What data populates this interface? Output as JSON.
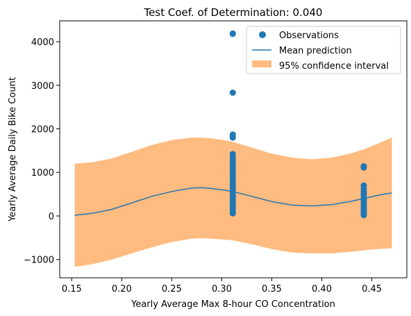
{
  "chart_data": {
    "type": "scatter",
    "title": "Test Coef. of Determination: 0.040",
    "xlabel": "Yearly Average Max 8-hour CO Concentration",
    "ylabel": "Yearly Average Daily Bike Count",
    "xlim": [
      0.138,
      0.485
    ],
    "ylim": [
      -1420,
      4480
    ],
    "xticks": [
      0.15,
      0.2,
      0.25,
      0.3,
      0.35,
      0.4,
      0.45
    ],
    "xtick_labels": [
      "0.15",
      "0.20",
      "0.25",
      "0.30",
      "0.35",
      "0.40",
      "0.45"
    ],
    "yticks": [
      -1000,
      0,
      1000,
      2000,
      3000,
      4000
    ],
    "ytick_labels": [
      "−1000",
      "0",
      "1000",
      "2000",
      "3000",
      "4000"
    ],
    "grid": false,
    "legend_position": "top-right",
    "colors": {
      "observations": "#1f77b4",
      "mean": "#1f77b4",
      "ci": "#ffbb80",
      "axis": "#000000"
    },
    "series": [
      {
        "name": "Observations",
        "kind": "scatter",
        "points": [
          [
            0.311,
            4190
          ],
          [
            0.311,
            4180
          ],
          [
            0.311,
            2830
          ],
          [
            0.311,
            1870
          ],
          [
            0.311,
            1800
          ],
          [
            0.311,
            1420
          ],
          [
            0.311,
            1350
          ],
          [
            0.311,
            1280
          ],
          [
            0.311,
            1200
          ],
          [
            0.311,
            1130
          ],
          [
            0.311,
            1060
          ],
          [
            0.311,
            990
          ],
          [
            0.311,
            930
          ],
          [
            0.311,
            870
          ],
          [
            0.311,
            810
          ],
          [
            0.311,
            750
          ],
          [
            0.311,
            700
          ],
          [
            0.311,
            650
          ],
          [
            0.311,
            600
          ],
          [
            0.311,
            550
          ],
          [
            0.311,
            500
          ],
          [
            0.311,
            450
          ],
          [
            0.311,
            400
          ],
          [
            0.311,
            350
          ],
          [
            0.311,
            300
          ],
          [
            0.311,
            250
          ],
          [
            0.311,
            200
          ],
          [
            0.311,
            150
          ],
          [
            0.311,
            100
          ],
          [
            0.311,
            60
          ],
          [
            0.442,
            1140
          ],
          [
            0.442,
            1110
          ],
          [
            0.442,
            700
          ],
          [
            0.442,
            620
          ],
          [
            0.442,
            560
          ],
          [
            0.442,
            500
          ],
          [
            0.442,
            440
          ],
          [
            0.442,
            380
          ],
          [
            0.442,
            320
          ],
          [
            0.442,
            270
          ],
          [
            0.442,
            220
          ],
          [
            0.442,
            170
          ],
          [
            0.442,
            130
          ],
          [
            0.442,
            90
          ],
          [
            0.442,
            50
          ],
          [
            0.442,
            20
          ]
        ]
      },
      {
        "name": "Mean prediction",
        "kind": "line",
        "x": [
          0.153,
          0.17,
          0.19,
          0.21,
          0.23,
          0.25,
          0.27,
          0.28,
          0.29,
          0.3,
          0.311,
          0.33,
          0.35,
          0.37,
          0.39,
          0.41,
          0.43,
          0.442,
          0.455,
          0.47
        ],
        "y": [
          15,
          60,
          150,
          300,
          450,
          560,
          640,
          650,
          630,
          600,
          560,
          450,
          330,
          250,
          230,
          260,
          340,
          400,
          470,
          530
        ]
      },
      {
        "name": "95% confidence interval",
        "kind": "band",
        "x": [
          0.153,
          0.17,
          0.19,
          0.21,
          0.23,
          0.25,
          0.27,
          0.28,
          0.29,
          0.3,
          0.311,
          0.33,
          0.35,
          0.37,
          0.39,
          0.41,
          0.43,
          0.442,
          0.455,
          0.47
        ],
        "upper": [
          1200,
          1230,
          1320,
          1470,
          1630,
          1740,
          1800,
          1800,
          1780,
          1750,
          1700,
          1570,
          1430,
          1340,
          1300,
          1340,
          1440,
          1530,
          1650,
          1800
        ],
        "lower": [
          -1170,
          -1110,
          -1000,
          -860,
          -720,
          -600,
          -520,
          -510,
          -520,
          -540,
          -560,
          -650,
          -760,
          -840,
          -860,
          -860,
          -820,
          -790,
          -760,
          -740
        ]
      }
    ]
  }
}
